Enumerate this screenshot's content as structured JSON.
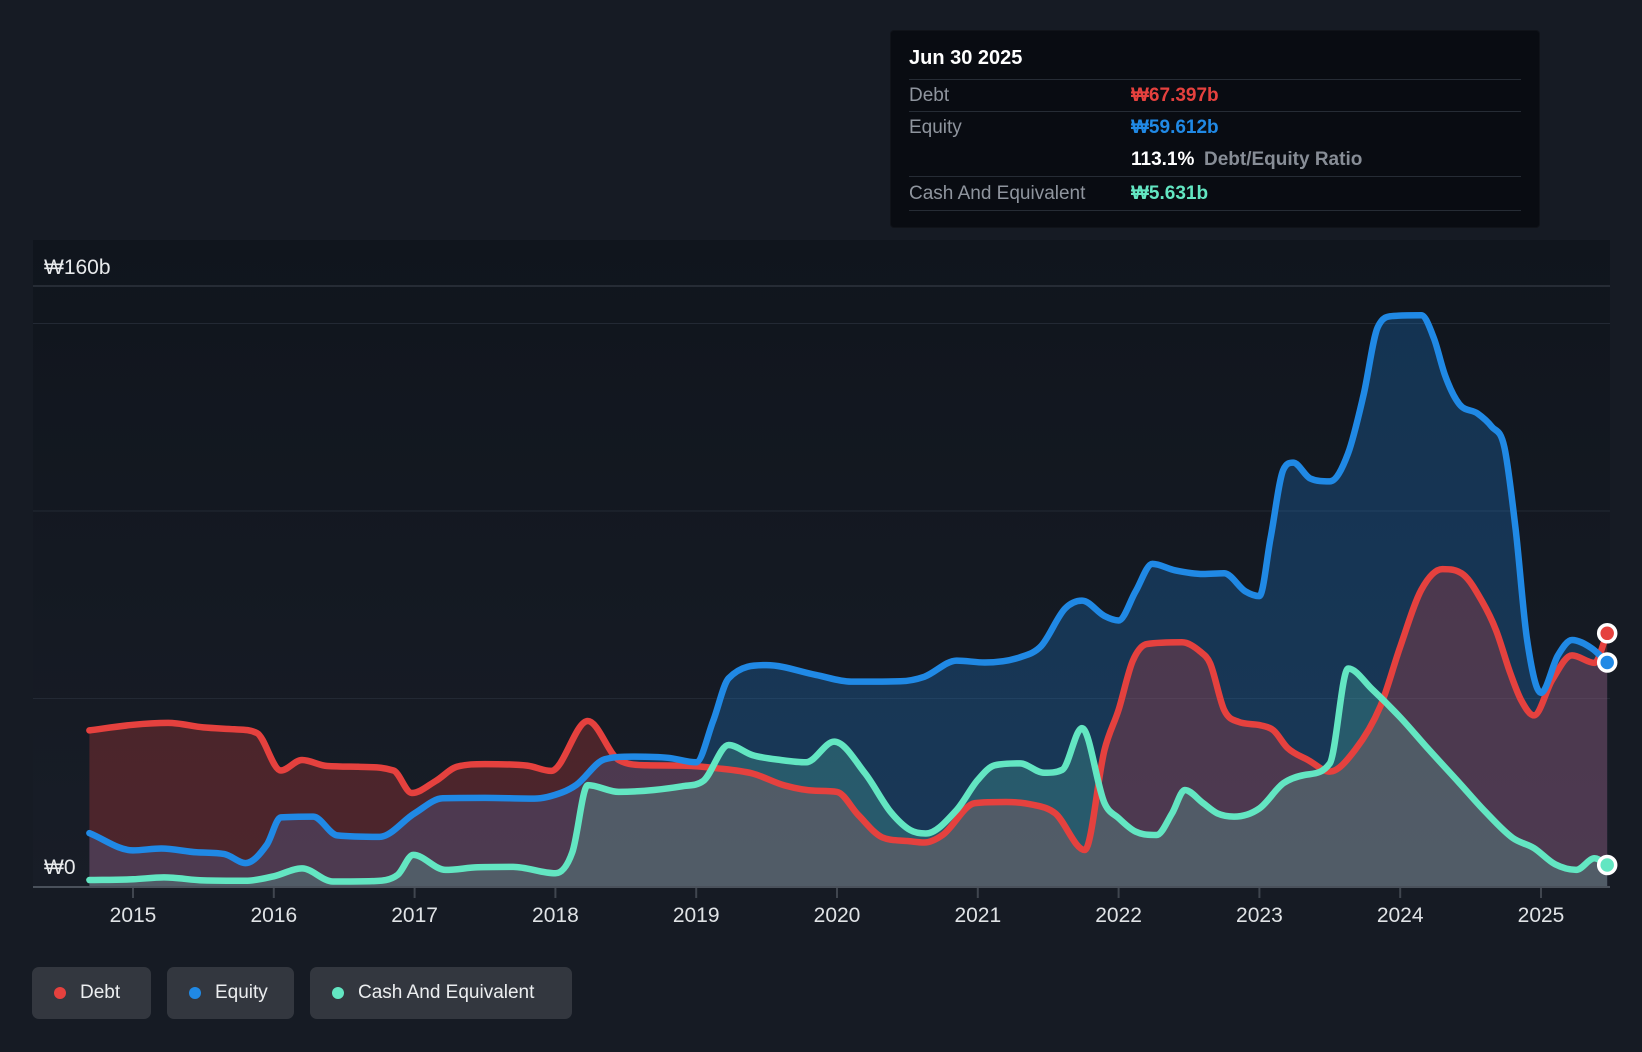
{
  "tooltip": {
    "date": "Jun 30 2025",
    "debt": {
      "label": "Debt",
      "value": "₩67.397b"
    },
    "equity": {
      "label": "Equity",
      "value": "₩59.612b"
    },
    "ratio": {
      "value": "113.1%",
      "label": "Debt/Equity Ratio"
    },
    "cash": {
      "label": "Cash And Equivalent",
      "value": "₩5.631b"
    }
  },
  "y_axis": {
    "top_label": "₩160b",
    "zero_label": "₩0",
    "max_value": 160,
    "unit": "₩ billions",
    "faint_gridline_values": [
      50,
      100,
      150
    ]
  },
  "legend": [
    {
      "label": "Debt",
      "color": "#e5413e"
    },
    {
      "label": "Equity",
      "color": "#2089e5"
    },
    {
      "label": "Cash And Equivalent",
      "color": "#63e6c2"
    }
  ],
  "chart_data": {
    "type": "area",
    "title": "",
    "xlabel": "",
    "ylabel": "₩ billions (KRW)",
    "x_axis_years": [
      2015,
      2016,
      2017,
      2018,
      2019,
      2020,
      2021,
      2022,
      2023,
      2024,
      2025
    ],
    "x_range": [
      2014.69,
      2025.56
    ],
    "ylim": [
      0,
      172
    ],
    "grid": "horizontal",
    "legend_position": "bottom-left",
    "end_markers": true,
    "series": [
      {
        "name": "Debt",
        "color": "#e5413e",
        "fill": "rgba(229,65,62,0.26)",
        "end_value": 67.397,
        "points": [
          [
            2014.69,
            41.5
          ],
          [
            2015.0,
            43.0
          ],
          [
            2015.25,
            43.5
          ],
          [
            2015.5,
            42.3
          ],
          [
            2015.72,
            41.8
          ],
          [
            2015.88,
            40.8
          ],
          [
            2016.05,
            30.8
          ],
          [
            2016.2,
            33.6
          ],
          [
            2016.38,
            32.0
          ],
          [
            2016.6,
            31.8
          ],
          [
            2016.85,
            30.8
          ],
          [
            2016.98,
            24.8
          ],
          [
            2017.15,
            28.0
          ],
          [
            2017.3,
            31.8
          ],
          [
            2017.5,
            32.5
          ],
          [
            2017.8,
            32.1
          ],
          [
            2017.97,
            30.7
          ],
          [
            2018.23,
            44.0
          ],
          [
            2018.45,
            33.6
          ],
          [
            2018.65,
            32.2
          ],
          [
            2018.9,
            32.1
          ],
          [
            2019.15,
            31.4
          ],
          [
            2019.4,
            30.0
          ],
          [
            2019.63,
            26.8
          ],
          [
            2019.85,
            25.4
          ],
          [
            2020.0,
            25.1
          ],
          [
            2020.15,
            19.0
          ],
          [
            2020.32,
            13.0
          ],
          [
            2020.5,
            12.0
          ],
          [
            2020.62,
            11.6
          ],
          [
            2020.75,
            13.6
          ],
          [
            2020.98,
            22.1
          ],
          [
            2021.2,
            22.4
          ],
          [
            2021.4,
            21.6
          ],
          [
            2021.55,
            19.4
          ],
          [
            2021.76,
            9.6
          ],
          [
            2021.9,
            36.3
          ],
          [
            2022.0,
            47.0
          ],
          [
            2022.1,
            60.0
          ],
          [
            2022.2,
            64.5
          ],
          [
            2022.45,
            65.0
          ],
          [
            2022.58,
            62.5
          ],
          [
            2022.65,
            59.4
          ],
          [
            2022.75,
            46.9
          ],
          [
            2022.85,
            43.8
          ],
          [
            2023.0,
            42.9
          ],
          [
            2023.1,
            41.5
          ],
          [
            2023.2,
            36.8
          ],
          [
            2023.35,
            33.5
          ],
          [
            2023.5,
            30.5
          ],
          [
            2023.68,
            36.3
          ],
          [
            2023.86,
            48.0
          ],
          [
            2024.0,
            63.8
          ],
          [
            2024.15,
            79.0
          ],
          [
            2024.3,
            84.5
          ],
          [
            2024.45,
            83.0
          ],
          [
            2024.58,
            76.0
          ],
          [
            2024.68,
            68.3
          ],
          [
            2024.78,
            57.0
          ],
          [
            2024.86,
            49.5
          ],
          [
            2024.95,
            45.5
          ],
          [
            2025.08,
            55.0
          ],
          [
            2025.22,
            61.5
          ],
          [
            2025.38,
            59.5
          ],
          [
            2025.47,
            67.4
          ]
        ]
      },
      {
        "name": "Equity",
        "color": "#2089e5",
        "fill": "rgba(32,137,229,0.26)",
        "end_value": 59.612,
        "points": [
          [
            2014.69,
            14.1
          ],
          [
            2015.0,
            9.5
          ],
          [
            2015.2,
            10.0
          ],
          [
            2015.45,
            9.0
          ],
          [
            2015.65,
            8.5
          ],
          [
            2015.8,
            6.1
          ],
          [
            2015.95,
            11.0
          ],
          [
            2016.05,
            18.3
          ],
          [
            2016.28,
            18.5
          ],
          [
            2016.45,
            13.5
          ],
          [
            2016.75,
            13.1
          ],
          [
            2017.0,
            19.4
          ],
          [
            2017.2,
            23.4
          ],
          [
            2017.5,
            23.5
          ],
          [
            2017.85,
            23.3
          ],
          [
            2018.05,
            25.0
          ],
          [
            2018.15,
            27.0
          ],
          [
            2018.35,
            33.8
          ],
          [
            2018.55,
            34.5
          ],
          [
            2018.8,
            34.2
          ],
          [
            2019.0,
            33.0
          ],
          [
            2019.12,
            44.0
          ],
          [
            2019.23,
            55.4
          ],
          [
            2019.5,
            58.9
          ],
          [
            2019.85,
            56.3
          ],
          [
            2020.1,
            54.5
          ],
          [
            2020.45,
            54.6
          ],
          [
            2020.62,
            55.8
          ],
          [
            2020.85,
            60.1
          ],
          [
            2021.05,
            59.6
          ],
          [
            2021.3,
            61.0
          ],
          [
            2021.45,
            64.0
          ],
          [
            2021.62,
            74.0
          ],
          [
            2021.74,
            76.1
          ],
          [
            2021.9,
            72.0
          ],
          [
            2022.0,
            70.8
          ],
          [
            2022.12,
            78.5
          ],
          [
            2022.24,
            85.9
          ],
          [
            2022.4,
            84.2
          ],
          [
            2022.6,
            83.2
          ],
          [
            2022.75,
            83.4
          ],
          [
            2022.9,
            78.6
          ],
          [
            2023.0,
            77.3
          ],
          [
            2023.08,
            93.0
          ],
          [
            2023.17,
            111.0
          ],
          [
            2023.24,
            112.9
          ],
          [
            2023.36,
            108.7
          ],
          [
            2023.5,
            107.9
          ],
          [
            2023.63,
            115.4
          ],
          [
            2023.74,
            131.0
          ],
          [
            2023.84,
            149.0
          ],
          [
            2023.95,
            152.0
          ],
          [
            2024.15,
            152.2
          ],
          [
            2024.24,
            146.0
          ],
          [
            2024.32,
            136.0
          ],
          [
            2024.42,
            128.5
          ],
          [
            2024.55,
            126.0
          ],
          [
            2024.65,
            122.5
          ],
          [
            2024.74,
            117.0
          ],
          [
            2024.82,
            95.0
          ],
          [
            2024.9,
            66.0
          ],
          [
            2025.0,
            51.5
          ],
          [
            2025.12,
            61.5
          ],
          [
            2025.22,
            65.6
          ],
          [
            2025.36,
            63.4
          ],
          [
            2025.47,
            59.6
          ]
        ]
      },
      {
        "name": "Cash And Equivalent",
        "color": "#63e6c2",
        "fill": "rgba(99,230,194,0.20)",
        "end_value": 5.631,
        "points": [
          [
            2014.69,
            1.6
          ],
          [
            2015.0,
            1.8
          ],
          [
            2015.22,
            2.3
          ],
          [
            2015.5,
            1.5
          ],
          [
            2015.8,
            1.4
          ],
          [
            2016.0,
            2.6
          ],
          [
            2016.2,
            4.7
          ],
          [
            2016.42,
            1.2
          ],
          [
            2016.7,
            1.3
          ],
          [
            2016.88,
            3.0
          ],
          [
            2016.99,
            8.3
          ],
          [
            2017.22,
            4.3
          ],
          [
            2017.45,
            5.0
          ],
          [
            2017.7,
            5.1
          ],
          [
            2018.0,
            3.4
          ],
          [
            2018.12,
            9.0
          ],
          [
            2018.23,
            26.9
          ],
          [
            2018.45,
            25.1
          ],
          [
            2018.7,
            25.6
          ],
          [
            2018.9,
            26.6
          ],
          [
            2019.05,
            28.0
          ],
          [
            2019.23,
            37.6
          ],
          [
            2019.4,
            34.9
          ],
          [
            2019.6,
            33.6
          ],
          [
            2019.78,
            33.0
          ],
          [
            2019.98,
            38.5
          ],
          [
            2020.2,
            30.0
          ],
          [
            2020.38,
            19.8
          ],
          [
            2020.52,
            14.9
          ],
          [
            2020.63,
            14.0
          ],
          [
            2020.85,
            20.3
          ],
          [
            2021.0,
            28.3
          ],
          [
            2021.12,
            32.2
          ],
          [
            2021.3,
            32.7
          ],
          [
            2021.47,
            30.2
          ],
          [
            2021.6,
            31.0
          ],
          [
            2021.74,
            42.1
          ],
          [
            2021.9,
            22.1
          ],
          [
            2022.0,
            18.1
          ],
          [
            2022.12,
            14.5
          ],
          [
            2022.27,
            13.6
          ],
          [
            2022.38,
            19.4
          ],
          [
            2022.47,
            25.6
          ],
          [
            2022.6,
            22.1
          ],
          [
            2022.7,
            19.4
          ],
          [
            2022.82,
            18.5
          ],
          [
            2023.0,
            20.7
          ],
          [
            2023.17,
            27.4
          ],
          [
            2023.32,
            29.6
          ],
          [
            2023.5,
            32.7
          ],
          [
            2023.63,
            58.0
          ],
          [
            2023.8,
            52.5
          ],
          [
            2024.0,
            45.0
          ],
          [
            2024.2,
            36.5
          ],
          [
            2024.42,
            27.5
          ],
          [
            2024.6,
            20.0
          ],
          [
            2024.8,
            12.8
          ],
          [
            2024.95,
            10.1
          ],
          [
            2025.1,
            5.8
          ],
          [
            2025.25,
            4.3
          ],
          [
            2025.38,
            7.4
          ],
          [
            2025.47,
            5.6
          ]
        ]
      }
    ]
  }
}
